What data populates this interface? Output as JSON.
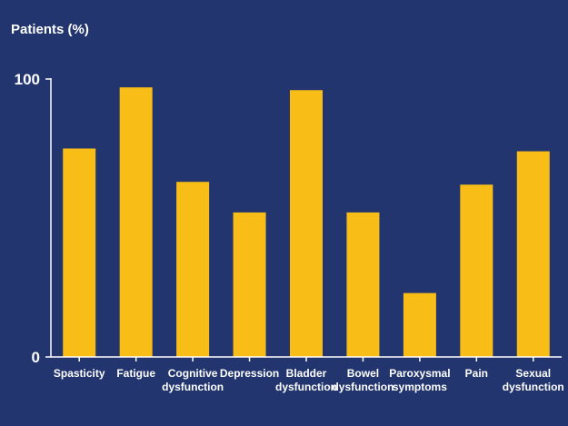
{
  "chart_data": {
    "type": "bar",
    "ylabel": "Patients (%)",
    "xlabel": "",
    "ylim": [
      0,
      100
    ],
    "yticks": [
      {
        "value": 0,
        "label": "0"
      },
      {
        "value": 100,
        "label": "100"
      }
    ],
    "categories": [
      [
        "Spasticity"
      ],
      [
        "Fatigue"
      ],
      [
        "Cognitive",
        "dysfunction"
      ],
      [
        "Depression"
      ],
      [
        "Bladder",
        "dysfunction"
      ],
      [
        "Bowel",
        "dysfunction"
      ],
      [
        "Paroxysmal",
        "symptoms"
      ],
      [
        "Pain"
      ],
      [
        "Sexual",
        "dysfunction"
      ]
    ],
    "values": [
      75,
      97,
      63,
      52,
      96,
      52,
      23,
      62,
      74
    ],
    "colors": {
      "bar": "#f8bd16",
      "background": "#22356f",
      "text": "#ffffff",
      "axis": "#ffffff"
    },
    "grid": false,
    "legend": "none"
  }
}
